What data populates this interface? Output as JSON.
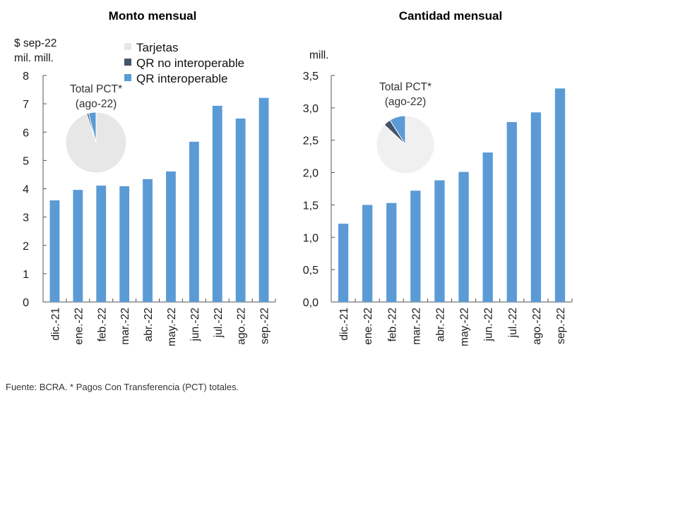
{
  "colors": {
    "bar": "#5b9bd5",
    "tarjetas": "#e7e7e7",
    "tarjetas_right": "#f0f0f0",
    "qr_no_interop": "#44546a",
    "qr_interop": "#5b9bd5",
    "axis": "#555555"
  },
  "legend": [
    {
      "label": "Tarjetas",
      "color_key": "tarjetas"
    },
    {
      "label": "QR no interoperable",
      "color_key": "qr_no_interop"
    },
    {
      "label": "QR interoperable",
      "color_key": "qr_interop"
    }
  ],
  "source_note": "Fuente: BCRA. * Pagos Con Transferencia (PCT) totales.",
  "chart_data": [
    {
      "type": "bar",
      "title": "Monto mensual",
      "ylabel_lines": [
        "$ sep-22",
        "mil. mill."
      ],
      "xlabel": "",
      "categories": [
        "dic.-21",
        "ene.-22",
        "feb.-22",
        "mar.-22",
        "abr.-22",
        "may.-22",
        "jun.-22",
        "jul.-22",
        "ago.-22",
        "sep.-22"
      ],
      "values": [
        3.59,
        3.96,
        4.11,
        4.09,
        4.34,
        4.61,
        5.66,
        6.93,
        6.48,
        7.21
      ],
      "ylim": [
        0,
        8
      ],
      "yticks": [
        0,
        1,
        2,
        3,
        4,
        5,
        6,
        7,
        8
      ],
      "ytick_labels": [
        "0",
        "1",
        "2",
        "3",
        "4",
        "5",
        "6",
        "7",
        "8"
      ],
      "grid": false,
      "legend_position": "top-center",
      "inset_pie": {
        "title_lines": [
          "Total PCT*",
          "(ago-22)"
        ],
        "slices": [
          {
            "label": "QR interoperable",
            "value": 4,
            "color_key": "qr_interop"
          },
          {
            "label": "QR no interoperable",
            "value": 1,
            "color_key": "qr_no_interop"
          },
          {
            "label": "Tarjetas",
            "value": 95,
            "color_key": "tarjetas"
          }
        ]
      }
    },
    {
      "type": "bar",
      "title": "Cantidad mensual",
      "ylabel_lines": [
        "mill."
      ],
      "xlabel": "",
      "categories": [
        "dic.-21",
        "ene.-22",
        "feb.-22",
        "mar.-22",
        "abr.-22",
        "may.-22",
        "jun.-22",
        "jul.-22",
        "ago.-22",
        "sep.-22"
      ],
      "values": [
        1.21,
        1.5,
        1.53,
        1.72,
        1.88,
        2.01,
        2.31,
        2.78,
        2.93,
        3.3
      ],
      "ylim": [
        0,
        3.5
      ],
      "yticks": [
        0,
        0.5,
        1,
        1.5,
        2,
        2.5,
        3,
        3.5
      ],
      "ytick_labels": [
        "0,0",
        "0,5",
        "1,0",
        "1,5",
        "2,0",
        "2,5",
        "3,0",
        "3,5"
      ],
      "grid": false,
      "inset_pie": {
        "title_lines": [
          "Total PCT*",
          "(ago-22)"
        ],
        "slices": [
          {
            "label": "QR interoperable",
            "value": 9,
            "color_key": "qr_interop"
          },
          {
            "label": "QR no interoperable",
            "value": 4,
            "color_key": "qr_no_interop"
          },
          {
            "label": "Tarjetas",
            "value": 87,
            "color_key": "tarjetas_right"
          }
        ]
      }
    }
  ]
}
